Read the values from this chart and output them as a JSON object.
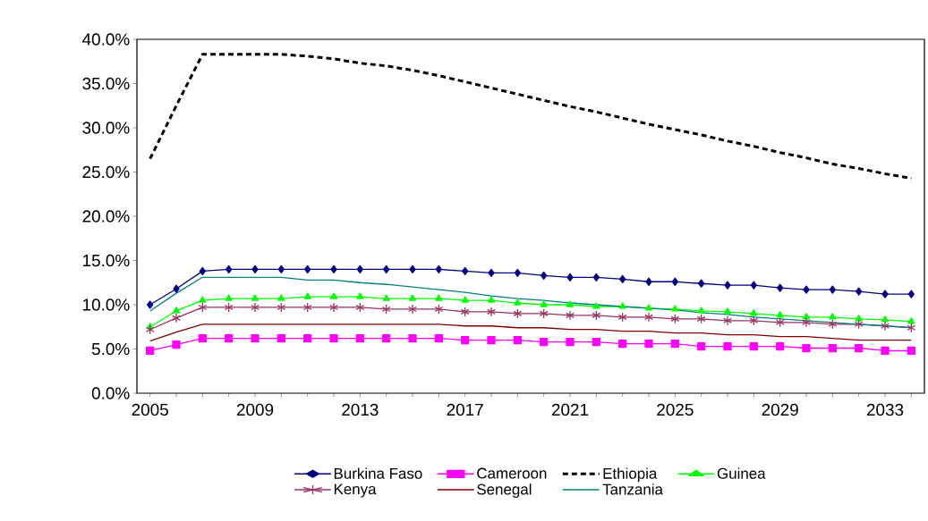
{
  "chart_data": {
    "type": "line",
    "categories": [
      "2005",
      null,
      null,
      null,
      "2009",
      null,
      null,
      null,
      "2013",
      null,
      null,
      null,
      "2017",
      null,
      null,
      null,
      "2021",
      null,
      null,
      null,
      "2025",
      null,
      null,
      null,
      "2029",
      null,
      null,
      null,
      "2033",
      null
    ],
    "ylim": [
      0,
      40
    ],
    "yticks": [
      {
        "value": 0,
        "label": "0.0%"
      },
      {
        "value": 5,
        "label": "5.0%"
      },
      {
        "value": 10,
        "label": "10.0%"
      },
      {
        "value": 15,
        "label": "15.0%"
      },
      {
        "value": 20,
        "label": "20.0%"
      },
      {
        "value": 25,
        "label": "25.0%"
      },
      {
        "value": 30,
        "label": "30.0%"
      },
      {
        "value": 35,
        "label": "35.0%"
      },
      {
        "value": 40,
        "label": "40.0%"
      }
    ],
    "legend": "bottom",
    "grid": false,
    "series": [
      {
        "name": "Burkina Faso",
        "color": "#000080",
        "marker": "diamond",
        "line_style": "solid",
        "values": [
          10.0,
          11.8,
          13.8,
          14.0,
          14.0,
          14.0,
          14.0,
          14.0,
          14.0,
          14.0,
          14.0,
          14.0,
          13.8,
          13.6,
          13.6,
          13.3,
          13.1,
          13.1,
          12.9,
          12.6,
          12.6,
          12.4,
          12.2,
          12.2,
          11.9,
          11.7,
          11.7,
          11.5,
          11.2,
          11.2
        ]
      },
      {
        "name": "Cameroon",
        "color": "#ff00ff",
        "marker": "square",
        "line_style": "solid",
        "values": [
          4.8,
          5.5,
          6.2,
          6.2,
          6.2,
          6.2,
          6.2,
          6.2,
          6.2,
          6.2,
          6.2,
          6.2,
          6.0,
          6.0,
          6.0,
          5.8,
          5.8,
          5.8,
          5.6,
          5.6,
          5.6,
          5.3,
          5.3,
          5.3,
          5.3,
          5.1,
          5.1,
          5.1,
          4.8,
          4.8
        ]
      },
      {
        "name": "Ethiopia",
        "color": "#000000",
        "marker": "none",
        "line_style": "dashed",
        "values": [
          26.5,
          32.5,
          38.3,
          38.3,
          38.3,
          38.3,
          38.1,
          37.8,
          37.3,
          37.0,
          36.5,
          35.9,
          35.2,
          34.5,
          33.8,
          33.1,
          32.4,
          31.8,
          31.1,
          30.4,
          29.8,
          29.2,
          28.5,
          27.9,
          27.2,
          26.6,
          25.9,
          25.4,
          24.8,
          24.3
        ]
      },
      {
        "name": "Guinea",
        "color": "#00ff00",
        "marker": "triangle",
        "line_style": "solid",
        "values": [
          7.5,
          9.3,
          10.5,
          10.7,
          10.7,
          10.7,
          10.9,
          10.9,
          10.9,
          10.7,
          10.7,
          10.7,
          10.5,
          10.5,
          10.2,
          10.0,
          10.0,
          9.8,
          9.8,
          9.6,
          9.5,
          9.3,
          9.2,
          9.0,
          8.8,
          8.6,
          8.6,
          8.4,
          8.3,
          8.1
        ]
      },
      {
        "name": "Kenya",
        "color": "#993366",
        "marker": "cross",
        "line_style": "solid",
        "values": [
          7.2,
          8.5,
          9.7,
          9.7,
          9.7,
          9.7,
          9.7,
          9.7,
          9.7,
          9.5,
          9.5,
          9.5,
          9.2,
          9.2,
          9.0,
          9.0,
          8.8,
          8.8,
          8.6,
          8.6,
          8.4,
          8.4,
          8.2,
          8.2,
          8.0,
          8.0,
          7.8,
          7.8,
          7.6,
          7.4
        ]
      },
      {
        "name": "Senegal",
        "color": "#800000",
        "marker": "none",
        "line_style": "solid",
        "values": [
          5.9,
          6.9,
          7.8,
          7.8,
          7.8,
          7.8,
          7.8,
          7.8,
          7.8,
          7.8,
          7.8,
          7.8,
          7.6,
          7.6,
          7.4,
          7.4,
          7.2,
          7.2,
          7.0,
          7.0,
          6.8,
          6.8,
          6.6,
          6.6,
          6.4,
          6.4,
          6.2,
          6.0,
          6.0,
          6.0
        ]
      },
      {
        "name": "Tanzania",
        "color": "#008080",
        "marker": "none",
        "line_style": "solid",
        "values": [
          9.3,
          11.3,
          13.1,
          13.1,
          13.1,
          13.1,
          12.8,
          12.8,
          12.5,
          12.3,
          12.0,
          11.7,
          11.4,
          11.0,
          10.7,
          10.5,
          10.2,
          10.0,
          9.8,
          9.6,
          9.4,
          9.1,
          8.9,
          8.6,
          8.4,
          8.2,
          8.0,
          7.8,
          7.6,
          7.4
        ]
      }
    ]
  }
}
